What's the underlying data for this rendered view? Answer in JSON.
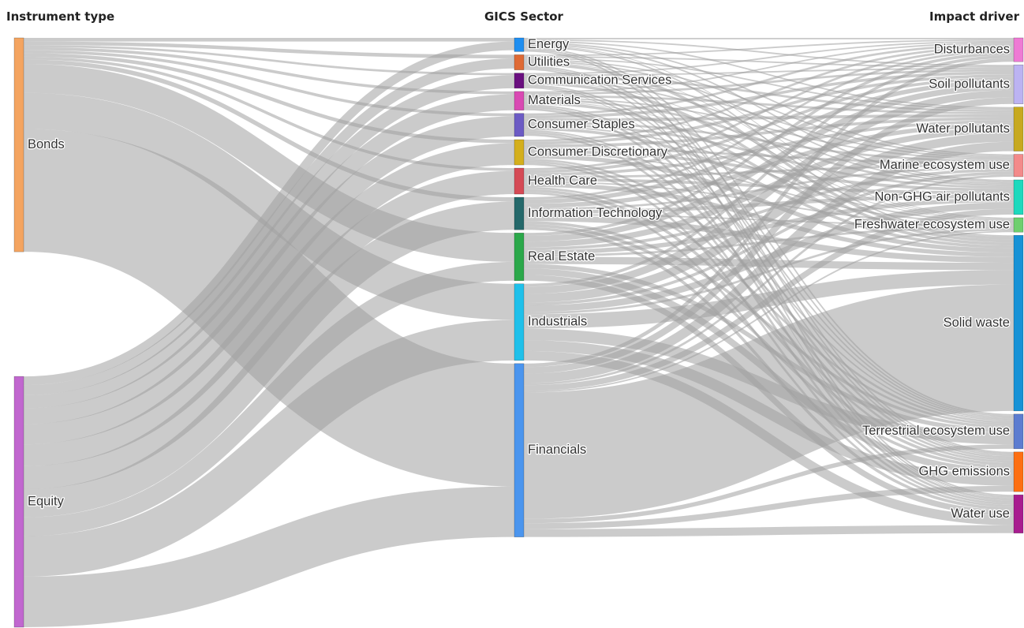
{
  "chart_data": {
    "type": "sankey",
    "columns": [
      "Instrument type",
      "GICS Sector",
      "Impact driver"
    ],
    "nodes": [
      {
        "id": "bonds",
        "label": "Bonds",
        "column": 0,
        "color": "#f4a460"
      },
      {
        "id": "equity",
        "label": "Equity",
        "column": 0,
        "color": "#c167cf"
      },
      {
        "id": "energy",
        "label": "Energy",
        "column": 1,
        "color": "#1f8ef0"
      },
      {
        "id": "utilities",
        "label": "Utilities",
        "column": 1,
        "color": "#df6a34"
      },
      {
        "id": "comm",
        "label": "Communication Services",
        "column": 1,
        "color": "#6a0f7f"
      },
      {
        "id": "materials",
        "label": "Materials",
        "column": 1,
        "color": "#d94ab3"
      },
      {
        "id": "staples",
        "label": "Consumer Staples",
        "column": 1,
        "color": "#6c5bc4"
      },
      {
        "id": "discretionary",
        "label": "Consumer Discretionary",
        "column": 1,
        "color": "#d4af1c"
      },
      {
        "id": "health",
        "label": "Health Care",
        "column": 1,
        "color": "#d54a55"
      },
      {
        "id": "it",
        "label": "Information Technology",
        "column": 1,
        "color": "#24686a"
      },
      {
        "id": "realestate",
        "label": "Real Estate",
        "column": 1,
        "color": "#2ba84a"
      },
      {
        "id": "industrials",
        "label": "Industrials",
        "column": 1,
        "color": "#1fc0ea"
      },
      {
        "id": "financials",
        "label": "Financials",
        "column": 1,
        "color": "#4b95ee"
      },
      {
        "id": "disturbances",
        "label": "Disturbances",
        "column": 2,
        "color": "#ee7ad4"
      },
      {
        "id": "soil",
        "label": "Soil pollutants",
        "column": 2,
        "color": "#bcb3f2"
      },
      {
        "id": "waterpoll",
        "label": "Water pollutants",
        "column": 2,
        "color": "#c7a91f"
      },
      {
        "id": "marine",
        "label": "Marine ecosystem use",
        "column": 2,
        "color": "#f38a8a"
      },
      {
        "id": "nonghg",
        "label": "Non-GHG air pollutants",
        "column": 2,
        "color": "#1dd9bd"
      },
      {
        "id": "freshwater",
        "label": "Freshwater ecosystem use",
        "column": 2,
        "color": "#6ecf6e"
      },
      {
        "id": "solid",
        "label": "Solid waste",
        "column": 2,
        "color": "#1792d6"
      },
      {
        "id": "terrestrial",
        "label": "Terrestrial ecosystem use",
        "column": 2,
        "color": "#5c7cd0"
      },
      {
        "id": "ghg",
        "label": "GHG emissions",
        "column": 2,
        "color": "#fd6f12"
      },
      {
        "id": "wateruse",
        "label": "Water use",
        "column": 2,
        "color": "#a81c8f"
      }
    ],
    "links": [
      {
        "source": "bonds",
        "target": "energy",
        "value": 0.5
      },
      {
        "source": "bonds",
        "target": "utilities",
        "value": 0.5
      },
      {
        "source": "bonds",
        "target": "comm",
        "value": 0.3
      },
      {
        "source": "bonds",
        "target": "materials",
        "value": 0.4
      },
      {
        "source": "bonds",
        "target": "staples",
        "value": 0.4
      },
      {
        "source": "bonds",
        "target": "discretionary",
        "value": 0.5
      },
      {
        "source": "bonds",
        "target": "health",
        "value": 0.4
      },
      {
        "source": "bonds",
        "target": "it",
        "value": 0.6
      },
      {
        "source": "bonds",
        "target": "realestate",
        "value": 4.0
      },
      {
        "source": "bonds",
        "target": "industrials",
        "value": 5.0
      },
      {
        "source": "bonds",
        "target": "financials",
        "value": 17.0
      },
      {
        "source": "equity",
        "target": "energy",
        "value": 1.2
      },
      {
        "source": "equity",
        "target": "utilities",
        "value": 1.4
      },
      {
        "source": "equity",
        "target": "comm",
        "value": 1.8
      },
      {
        "source": "equity",
        "target": "materials",
        "value": 2.2
      },
      {
        "source": "equity",
        "target": "staples",
        "value": 2.8
      },
      {
        "source": "equity",
        "target": "discretionary",
        "value": 3.0
      },
      {
        "source": "equity",
        "target": "health",
        "value": 3.2
      },
      {
        "source": "equity",
        "target": "it",
        "value": 3.9
      },
      {
        "source": "equity",
        "target": "realestate",
        "value": 2.6
      },
      {
        "source": "equity",
        "target": "industrials",
        "value": 5.6
      },
      {
        "source": "equity",
        "target": "financials",
        "value": 7.0
      },
      {
        "source": "energy",
        "target": "disturbances",
        "value": 0.2
      },
      {
        "source": "energy",
        "target": "soil",
        "value": 0.2
      },
      {
        "source": "energy",
        "target": "waterpoll",
        "value": 0.2
      },
      {
        "source": "energy",
        "target": "marine",
        "value": 0.2
      },
      {
        "source": "energy",
        "target": "nonghg",
        "value": 0.2
      },
      {
        "source": "energy",
        "target": "freshwater",
        "value": 0.1
      },
      {
        "source": "energy",
        "target": "solid",
        "value": 0.2
      },
      {
        "source": "energy",
        "target": "terrestrial",
        "value": 0.2
      },
      {
        "source": "energy",
        "target": "ghg",
        "value": 0.2
      },
      {
        "source": "energy",
        "target": "wateruse",
        "value": 0.2
      },
      {
        "source": "utilities",
        "target": "disturbances",
        "value": 0.2
      },
      {
        "source": "utilities",
        "target": "soil",
        "value": 0.2
      },
      {
        "source": "utilities",
        "target": "waterpoll",
        "value": 0.2
      },
      {
        "source": "utilities",
        "target": "marine",
        "value": 0.2
      },
      {
        "source": "utilities",
        "target": "nonghg",
        "value": 0.2
      },
      {
        "source": "utilities",
        "target": "freshwater",
        "value": 0.1
      },
      {
        "source": "utilities",
        "target": "solid",
        "value": 0.4
      },
      {
        "source": "utilities",
        "target": "terrestrial",
        "value": 0.2
      },
      {
        "source": "utilities",
        "target": "ghg",
        "value": 0.2
      },
      {
        "source": "utilities",
        "target": "wateruse",
        "value": 0.2
      },
      {
        "source": "comm",
        "target": "disturbances",
        "value": 0.2
      },
      {
        "source": "comm",
        "target": "soil",
        "value": 0.2
      },
      {
        "source": "comm",
        "target": "waterpoll",
        "value": 0.3
      },
      {
        "source": "comm",
        "target": "marine",
        "value": 0.2
      },
      {
        "source": "comm",
        "target": "nonghg",
        "value": 0.2
      },
      {
        "source": "comm",
        "target": "freshwater",
        "value": 0.1
      },
      {
        "source": "comm",
        "target": "solid",
        "value": 0.4
      },
      {
        "source": "comm",
        "target": "terrestrial",
        "value": 0.2
      },
      {
        "source": "comm",
        "target": "ghg",
        "value": 0.2
      },
      {
        "source": "comm",
        "target": "wateruse",
        "value": 0.1
      },
      {
        "source": "materials",
        "target": "disturbances",
        "value": 0.2
      },
      {
        "source": "materials",
        "target": "soil",
        "value": 0.3
      },
      {
        "source": "materials",
        "target": "waterpoll",
        "value": 0.3
      },
      {
        "source": "materials",
        "target": "marine",
        "value": 0.2
      },
      {
        "source": "materials",
        "target": "nonghg",
        "value": 0.3
      },
      {
        "source": "materials",
        "target": "freshwater",
        "value": 0.1
      },
      {
        "source": "materials",
        "target": "solid",
        "value": 0.4
      },
      {
        "source": "materials",
        "target": "terrestrial",
        "value": 0.2
      },
      {
        "source": "materials",
        "target": "ghg",
        "value": 0.3
      },
      {
        "source": "materials",
        "target": "wateruse",
        "value": 0.3
      },
      {
        "source": "staples",
        "target": "disturbances",
        "value": 0.3
      },
      {
        "source": "staples",
        "target": "soil",
        "value": 0.4
      },
      {
        "source": "staples",
        "target": "waterpoll",
        "value": 0.4
      },
      {
        "source": "staples",
        "target": "marine",
        "value": 0.3
      },
      {
        "source": "staples",
        "target": "nonghg",
        "value": 0.3
      },
      {
        "source": "staples",
        "target": "freshwater",
        "value": 0.2
      },
      {
        "source": "staples",
        "target": "solid",
        "value": 0.4
      },
      {
        "source": "staples",
        "target": "terrestrial",
        "value": 0.2
      },
      {
        "source": "staples",
        "target": "ghg",
        "value": 0.3
      },
      {
        "source": "staples",
        "target": "wateruse",
        "value": 0.3
      },
      {
        "source": "discretionary",
        "target": "disturbances",
        "value": 0.3
      },
      {
        "source": "discretionary",
        "target": "soil",
        "value": 0.4
      },
      {
        "source": "discretionary",
        "target": "waterpoll",
        "value": 0.4
      },
      {
        "source": "discretionary",
        "target": "marine",
        "value": 0.3
      },
      {
        "source": "discretionary",
        "target": "nonghg",
        "value": 0.4
      },
      {
        "source": "discretionary",
        "target": "freshwater",
        "value": 0.2
      },
      {
        "source": "discretionary",
        "target": "solid",
        "value": 0.6
      },
      {
        "source": "discretionary",
        "target": "terrestrial",
        "value": 0.3
      },
      {
        "source": "discretionary",
        "target": "ghg",
        "value": 0.3
      },
      {
        "source": "discretionary",
        "target": "wateruse",
        "value": 0.3
      },
      {
        "source": "health",
        "target": "disturbances",
        "value": 0.3
      },
      {
        "source": "health",
        "target": "soil",
        "value": 0.4
      },
      {
        "source": "health",
        "target": "waterpoll",
        "value": 0.4
      },
      {
        "source": "health",
        "target": "marine",
        "value": 0.3
      },
      {
        "source": "health",
        "target": "nonghg",
        "value": 0.4
      },
      {
        "source": "health",
        "target": "freshwater",
        "value": 0.2
      },
      {
        "source": "health",
        "target": "solid",
        "value": 0.6
      },
      {
        "source": "health",
        "target": "terrestrial",
        "value": 0.3
      },
      {
        "source": "health",
        "target": "ghg",
        "value": 0.4
      },
      {
        "source": "health",
        "target": "wateruse",
        "value": 0.3
      },
      {
        "source": "it",
        "target": "disturbances",
        "value": 0.3
      },
      {
        "source": "it",
        "target": "soil",
        "value": 0.6
      },
      {
        "source": "it",
        "target": "waterpoll",
        "value": 0.6
      },
      {
        "source": "it",
        "target": "marine",
        "value": 0.3
      },
      {
        "source": "it",
        "target": "nonghg",
        "value": 0.5
      },
      {
        "source": "it",
        "target": "freshwater",
        "value": 0.2
      },
      {
        "source": "it",
        "target": "solid",
        "value": 0.8
      },
      {
        "source": "it",
        "target": "terrestrial",
        "value": 0.4
      },
      {
        "source": "it",
        "target": "ghg",
        "value": 0.4
      },
      {
        "source": "it",
        "target": "wateruse",
        "value": 0.4
      },
      {
        "source": "realestate",
        "target": "disturbances",
        "value": 0.4
      },
      {
        "source": "realestate",
        "target": "soil",
        "value": 0.8
      },
      {
        "source": "realestate",
        "target": "waterpoll",
        "value": 0.8
      },
      {
        "source": "realestate",
        "target": "marine",
        "value": 0.4
      },
      {
        "source": "realestate",
        "target": "nonghg",
        "value": 0.6
      },
      {
        "source": "realestate",
        "target": "freshwater",
        "value": 0.3
      },
      {
        "source": "realestate",
        "target": "solid",
        "value": 1.0
      },
      {
        "source": "realestate",
        "target": "terrestrial",
        "value": 0.6
      },
      {
        "source": "realestate",
        "target": "ghg",
        "value": 0.9
      },
      {
        "source": "realestate",
        "target": "wateruse",
        "value": 0.8
      },
      {
        "source": "industrials",
        "target": "disturbances",
        "value": 0.4
      },
      {
        "source": "industrials",
        "target": "soil",
        "value": 1.0
      },
      {
        "source": "industrials",
        "target": "waterpoll",
        "value": 1.2
      },
      {
        "source": "industrials",
        "target": "marine",
        "value": 0.4
      },
      {
        "source": "industrials",
        "target": "nonghg",
        "value": 0.9
      },
      {
        "source": "industrials",
        "target": "freshwater",
        "value": 0.3
      },
      {
        "source": "industrials",
        "target": "solid",
        "value": 2.0
      },
      {
        "source": "industrials",
        "target": "terrestrial",
        "value": 1.6
      },
      {
        "source": "industrials",
        "target": "ghg",
        "value": 1.5
      },
      {
        "source": "industrials",
        "target": "wateruse",
        "value": 1.3
      },
      {
        "source": "financials",
        "target": "disturbances",
        "value": 0.5
      },
      {
        "source": "financials",
        "target": "soil",
        "value": 0.9
      },
      {
        "source": "financials",
        "target": "waterpoll",
        "value": 1.3
      },
      {
        "source": "financials",
        "target": "marine",
        "value": 0.3
      },
      {
        "source": "financials",
        "target": "nonghg",
        "value": 0.8
      },
      {
        "source": "financials",
        "target": "freshwater",
        "value": 0.2
      },
      {
        "source": "financials",
        "target": "solid",
        "value": 17.5
      },
      {
        "source": "financials",
        "target": "terrestrial",
        "value": 0.6
      },
      {
        "source": "financials",
        "target": "ghg",
        "value": 0.8
      },
      {
        "source": "financials",
        "target": "wateruse",
        "value": 1.1
      }
    ]
  }
}
